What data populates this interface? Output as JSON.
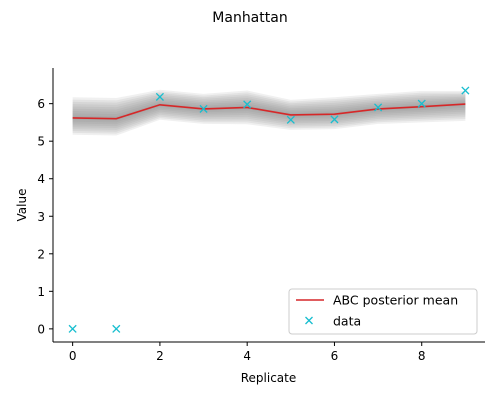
{
  "chart_data": {
    "type": "line",
    "title": "Manhattan",
    "xlabel": "Replicate",
    "ylabel": "Value",
    "xlim": [
      -0.45,
      9.45
    ],
    "ylim": [
      -0.35,
      6.95
    ],
    "xticks": [
      0,
      2,
      4,
      6,
      8
    ],
    "yticks": [
      0,
      1,
      2,
      3,
      4,
      5,
      6
    ],
    "x": [
      0,
      1,
      2,
      3,
      4,
      5,
      6,
      7,
      8,
      9
    ],
    "series": [
      {
        "name": "ABC posterior mean",
        "kind": "line",
        "color": "#d62728",
        "values": [
          5.62,
          5.6,
          5.97,
          5.86,
          5.9,
          5.7,
          5.72,
          5.86,
          5.92,
          5.99
        ]
      },
      {
        "name": "data",
        "kind": "marker-x",
        "color": "#17becf",
        "values": [
          0.0,
          0.0,
          6.18,
          5.86,
          5.98,
          5.57,
          5.58,
          5.9,
          6.0,
          6.35
        ]
      }
    ],
    "posterior_band": {
      "color": "#808080",
      "spread_lower": [
        0.45,
        0.45,
        0.4,
        0.4,
        0.45,
        0.4,
        0.4,
        0.4,
        0.42,
        0.45
      ],
      "spread_upper": [
        0.55,
        0.55,
        0.4,
        0.4,
        0.45,
        0.4,
        0.45,
        0.4,
        0.42,
        0.35
      ]
    },
    "legend": {
      "position": "lower-right"
    },
    "grid": false
  }
}
